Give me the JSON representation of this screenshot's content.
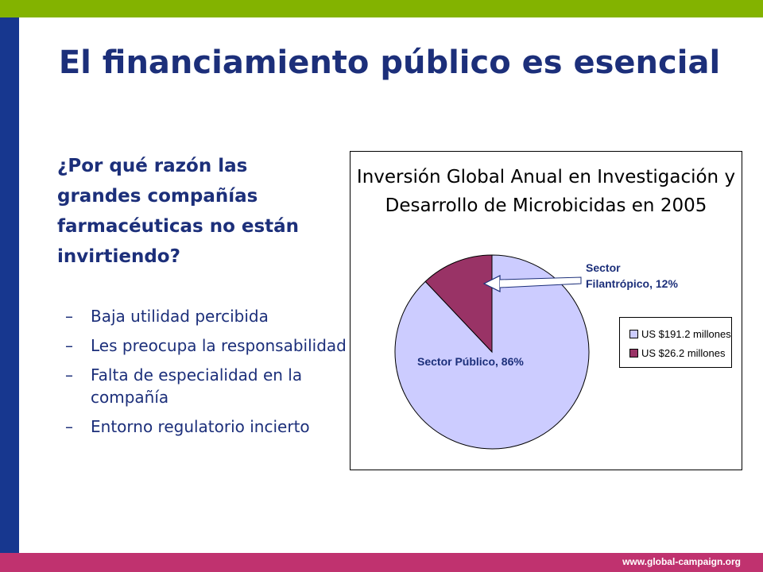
{
  "slide": {
    "title": "El financiamiento público es esencial",
    "question": "¿Por qué razón las grandes compañías farmacéuticas no están invirtiendo?",
    "bullet_marker": "–",
    "bullets": [
      "Baja utilidad percibida",
      "Les preocupa la responsabilidad",
      "Falta de especialidad en la compañía",
      "Entorno regulatorio incierto"
    ],
    "footer_url": "www.global-campaign.org",
    "colors": {
      "top_bar": "#83b300",
      "left_bar": "#17378f",
      "bottom_bar": "#c0326f",
      "title_text": "#1c2f7a"
    }
  },
  "chart_data": {
    "type": "pie",
    "title": "Inversión Global Anual en Investigación y Desarrollo de Microbicidas en 2005",
    "slices": [
      {
        "label": "Sector Público, 86%",
        "legend": "US $191.2 millones",
        "value_musd": 191.2,
        "percent": 86,
        "color": "#ccccff"
      },
      {
        "label": "Sector Filantrópico, 12%",
        "legend": "US $26.2 millones",
        "value_musd": 26.2,
        "percent": 12,
        "color": "#993366"
      }
    ],
    "legend_position": "right",
    "annotation_arrow": "pointing to Sector Filantrópico slice"
  }
}
